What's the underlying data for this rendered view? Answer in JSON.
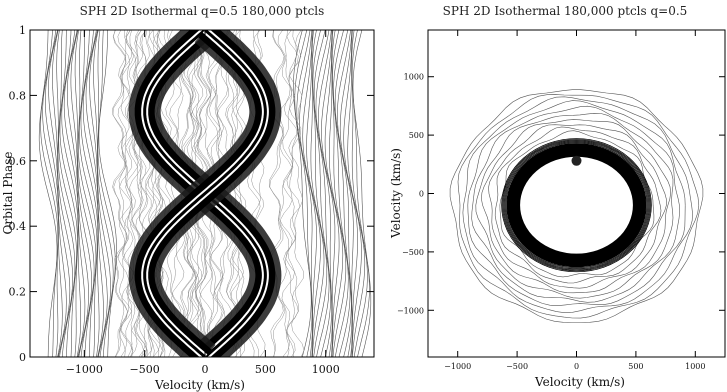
{
  "chart_data": [
    {
      "type": "contour",
      "title": "SPH 2D Isothermal q=0.5 180,000 ptcls",
      "xlabel": "Velocity (km/s)",
      "ylabel": "Orbital Phase",
      "xlim": [
        -1450,
        1400
      ],
      "ylim": [
        0,
        1
      ],
      "xticks": [
        "−1000",
        "−500",
        "0",
        "500",
        "1000"
      ],
      "yticks": [
        "0",
        "0.2",
        "0.4",
        "0.6",
        "0.8",
        "1"
      ],
      "xtick_values": [
        -1000,
        -500,
        0,
        500,
        1000
      ],
      "ytick_values": [
        0,
        0.2,
        0.4,
        0.6,
        0.8,
        1
      ],
      "series": [
        {
          "velocity_amplitude": 500,
          "phase_offset": 0.0
        },
        {
          "velocity_amplitude": 500,
          "phase_offset": 0.5
        }
      ],
      "line_profile_half_width": 1300
    },
    {
      "type": "contour",
      "title": "SPH 2D Isothermal 180,000 ptcls q=0.5",
      "xlabel": "Velocity (km/s)",
      "ylabel": "Velocity (km/s)",
      "xlim": [
        -1250,
        1250
      ],
      "ylim": [
        -1400,
        1400
      ],
      "xticks": [
        "−1000",
        "−500",
        "0",
        "500",
        "1000"
      ],
      "yticks": [
        "−1000",
        "−500",
        "0",
        "500",
        "1000"
      ],
      "xtick_values": [
        -1000,
        -500,
        0,
        500,
        1000
      ],
      "ytick_values": [
        -1000,
        -500,
        0,
        500,
        1000
      ],
      "disc": {
        "center_vx": 0,
        "center_vy": -100,
        "inner_rx": 480,
        "inner_ry": 420,
        "outer_r": 1050
      },
      "bright_spot": {
        "vx": 0,
        "vy": 280
      }
    }
  ]
}
